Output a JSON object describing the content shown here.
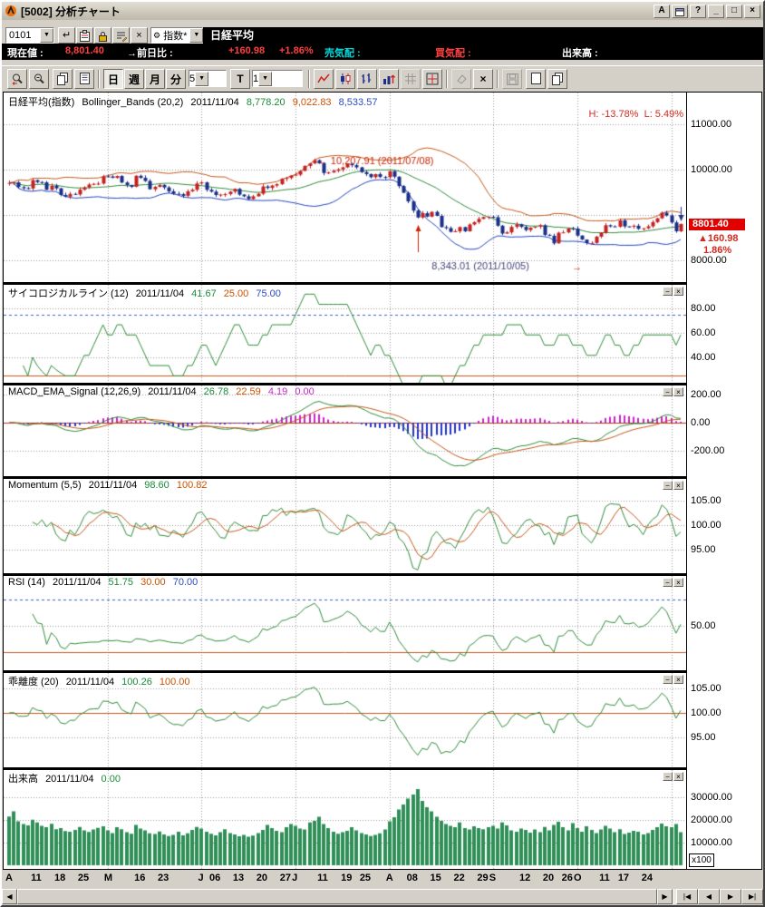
{
  "window": {
    "title": "[5002] 分析チャート",
    "buttons": {
      "font": "A",
      "help": "?",
      "minimize": "_",
      "maximize": "□",
      "close": "×"
    }
  },
  "toolbar1": {
    "preset_value": "0101",
    "index_selector": "指数*",
    "instrument": "日経平均"
  },
  "status_bar": {
    "current_label": "現在値 :",
    "current_value": "8,801.40",
    "change_label": "→前日比 :",
    "change_value": "+160.98",
    "change_pct": "+1.86%",
    "ask_label": "売気配 :",
    "bid_label": "買気配 :",
    "volume_label": "出来高 :"
  },
  "toolbar2": {
    "day": "日",
    "week": "週",
    "month": "月",
    "minute": "分",
    "bars_value": "5",
    "t_button": "T",
    "interval_value": "1"
  },
  "ui": {
    "panel_min": "−",
    "panel_close": "×",
    "combo_arrow": "▼",
    "return_glyph": "↵",
    "x_glyph": "×",
    "gear_glyph": "⚙",
    "scroll": {
      "left": "◀",
      "right": "▶",
      "first": "|◀",
      "prev": "◀",
      "next": "▶",
      "last": "▶|"
    }
  },
  "colors": {
    "green": "#1a8c3a",
    "orange": "#cc5200",
    "blue": "#2b4bc8",
    "magenta": "#cc22cc",
    "red": "#d42a1e",
    "bright_red": "#ff4040",
    "cyan": "#00d8d8",
    "white": "#ffffff"
  },
  "price_marker": {
    "price": "8801.40",
    "change": "▲160.98",
    "pct": "1.86%"
  },
  "chart_data": {
    "type": "candlestick-multi-panel",
    "date": "2011/11/04",
    "closes": [
      9708,
      9719,
      9615,
      9590,
      9584,
      9768,
      9725,
      9719,
      9555,
      9641,
      9587,
      9441,
      9405,
      9464,
      9452,
      9557,
      9607,
      9671,
      9685,
      9692,
      9850,
      9849,
      9818,
      9859,
      9716,
      9661,
      9622,
      9864,
      9818,
      9749,
      9567,
      9620,
      9662,
      9607,
      9521,
      9465,
      9460,
      9422,
      9521,
      9555,
      9694,
      9719,
      9555,
      9514,
      9440,
      9449,
      9459,
      9514,
      9576,
      9448,
      9411,
      9351,
      9411,
      9467,
      9629,
      9596,
      9648,
      9679,
      9797,
      9816,
      9868,
      9889,
      9972,
      10082,
      10137,
      10207,
      10138,
      9925,
      9936,
      9974,
      10005,
      10050,
      10132,
      10098,
      10050,
      9944,
      9901,
      9833,
      9901,
      9837,
      9833,
      9965,
      9844,
      9637,
      9489,
      9299,
      9097,
      8944,
      9039,
      8963,
      9068,
      8981,
      8733,
      8710,
      8628,
      8640,
      8733,
      8640,
      8790,
      8842,
      8913,
      8955,
      8960,
      8950,
      8763,
      8590,
      8616,
      8737,
      8794,
      8738,
      8668,
      8721,
      8741,
      8773,
      8560,
      8541,
      8374,
      8609,
      8615,
      8701,
      8700,
      8545,
      8456,
      8382,
      8383,
      8522,
      8605,
      8774,
      8748,
      8741,
      8880,
      8748,
      8741,
      8762,
      8693,
      8705,
      8749,
      8843,
      8926,
      9050,
      8988,
      8835,
      8640,
      8801.4
    ],
    "volumes": [
      21500,
      23800,
      19400,
      18200,
      17600,
      20100,
      18900,
      17400,
      16800,
      18300,
      15900,
      16400,
      15100,
      14800,
      15600,
      16900,
      15400,
      14700,
      15800,
      16500,
      17200,
      15400,
      14200,
      16800,
      15900,
      14600,
      13900,
      17800,
      16200,
      15400,
      14100,
      13800,
      14900,
      13600,
      12900,
      13400,
      14800,
      13200,
      14100,
      15600,
      16900,
      16200,
      14800,
      13900,
      13200,
      14600,
      15900,
      14200,
      13600,
      12800,
      13400,
      12600,
      13100,
      14200,
      15600,
      17800,
      16400,
      15200,
      14600,
      16800,
      18200,
      17400,
      16200,
      15800,
      18900,
      19600,
      21400,
      18200,
      16400,
      14800,
      13900,
      14600,
      15200,
      16800,
      15400,
      14200,
      13600,
      12900,
      13400,
      14100,
      15800,
      19400,
      21200,
      24600,
      26800,
      29400,
      31200,
      33600,
      28400,
      25600,
      23800,
      21400,
      19600,
      18200,
      17400,
      16800,
      18900,
      16400,
      15800,
      17200,
      16400,
      15900,
      16800,
      17400,
      16200,
      18900,
      17600,
      15400,
      14800,
      16200,
      15600,
      14400,
      15800,
      14600,
      16900,
      15400,
      17800,
      19200,
      16800,
      15400,
      18600,
      16400,
      14800,
      17200,
      15600,
      14200,
      15800,
      17400,
      16200,
      14600,
      15900,
      13800,
      14400,
      15200,
      14800,
      13600,
      14200,
      15600,
      16800,
      18400,
      17200,
      16800,
      18200,
      14600
    ],
    "month_starts": [
      0,
      21,
      41,
      61,
      81,
      103,
      121,
      141
    ],
    "x_ticks": [
      {
        "label": "A",
        "i": 0,
        "bold": true
      },
      {
        "label": "11",
        "i": 6
      },
      {
        "label": "18",
        "i": 11
      },
      {
        "label": "25",
        "i": 16
      },
      {
        "label": "M",
        "i": 21,
        "bold": true
      },
      {
        "label": "16",
        "i": 28
      },
      {
        "label": "23",
        "i": 33
      },
      {
        "label": "J",
        "i": 41,
        "bold": true
      },
      {
        "label": "06",
        "i": 44
      },
      {
        "label": "13",
        "i": 49
      },
      {
        "label": "20",
        "i": 54
      },
      {
        "label": "27",
        "i": 59
      },
      {
        "label": "J",
        "i": 61,
        "bold": true
      },
      {
        "label": "11",
        "i": 67
      },
      {
        "label": "19",
        "i": 72
      },
      {
        "label": "25",
        "i": 76
      },
      {
        "label": "A",
        "i": 81,
        "bold": true
      },
      {
        "label": "08",
        "i": 86
      },
      {
        "label": "15",
        "i": 91
      },
      {
        "label": "22",
        "i": 96
      },
      {
        "label": "29",
        "i": 101
      },
      {
        "label": "S",
        "i": 103,
        "bold": true
      },
      {
        "label": "12",
        "i": 110
      },
      {
        "label": "20",
        "i": 115
      },
      {
        "label": "26",
        "i": 119
      },
      {
        "label": "O",
        "i": 121,
        "bold": true
      },
      {
        "label": "11",
        "i": 127
      },
      {
        "label": "17",
        "i": 131
      },
      {
        "label": "24",
        "i": 136
      }
    ],
    "panels": [
      {
        "name": "日経平均(指数)",
        "indicator": "Bollinger_Bands (20,2)",
        "date": "2011/11/04",
        "values": [
          "8,778.20",
          "9,022.83",
          "8,533.57"
        ],
        "high_low": "H: -13.78%  L: 5.49%",
        "ylim": [
          7520,
          11700
        ],
        "yticks": [
          11000,
          10000,
          9000,
          8000
        ],
        "label_ticks": [
          11000,
          10000,
          8000
        ],
        "annotations": {
          "peak": "← 10,207.91 (2011/07/08)",
          "trough": "8,343.01 (2011/10/05)",
          "trough_arrow": "→"
        }
      },
      {
        "name": "サイコロジカルライン (12)",
        "date": "2011/11/04",
        "values": [
          "41.67",
          "25.00",
          "75.00"
        ],
        "ylim": [
          19.3,
          99.3
        ],
        "yticks": [
          80,
          60,
          40
        ],
        "thresholds": [
          {
            "value": 75,
            "style": "dashed_blue"
          },
          {
            "value": 25,
            "style": "solid_orange"
          }
        ]
      },
      {
        "name": "MACD_EMA_Signal (12,26,9)",
        "date": "2011/11/04",
        "values": [
          "26.78",
          "22.59",
          "4.19",
          "0.00"
        ],
        "ylim": [
          -380.7,
          264.5
        ],
        "yticks": [
          200,
          -200
        ],
        "label_ticks": [
          200,
          0,
          -200
        ],
        "thresholds": [
          {
            "value": 0,
            "style": "solid_red"
          }
        ]
      },
      {
        "name": "Momentum (5,5)",
        "date": "2011/11/04",
        "values": [
          "98.60",
          "100.82"
        ],
        "ylim": [
          90.18,
          109.44
        ],
        "yticks": [
          105,
          100,
          95
        ]
      },
      {
        "name": "RSI (14)",
        "date": "2011/11/04",
        "values": [
          "51.75",
          "30.00",
          "70.00"
        ],
        "ylim": [
          16.21,
          87.93
        ],
        "yticks": [
          50
        ],
        "thresholds": [
          {
            "value": 70,
            "style": "dashed_blue"
          },
          {
            "value": 30,
            "style": "solid_orange"
          }
        ]
      },
      {
        "name": "乖離度 (20)",
        "date": "2011/11/04",
        "values": [
          "100.26",
          "100.00"
        ],
        "ylim": [
          88.89,
          108.15
        ],
        "yticks": [
          105,
          95
        ],
        "label_ticks": [
          105,
          100,
          95
        ],
        "thresholds": [
          {
            "value": 100,
            "style": "solid_orange"
          }
        ]
      },
      {
        "name": "出来高",
        "date": "2011/11/04",
        "values": [
          "0.00"
        ],
        "ylim": [
          -1600,
          42000
        ],
        "yticks": [
          30000,
          20000,
          10000
        ],
        "unit": "x100"
      }
    ]
  }
}
